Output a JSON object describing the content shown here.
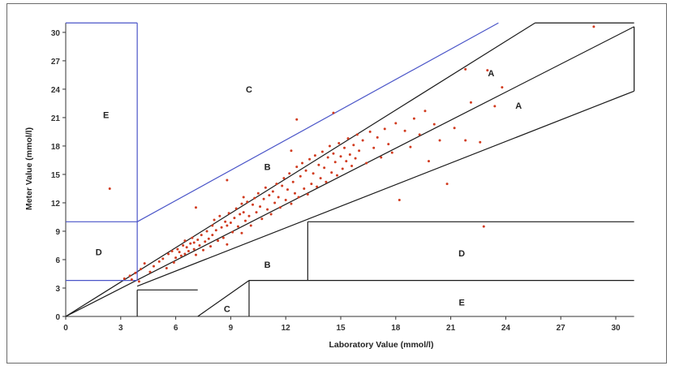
{
  "chart_data": {
    "type": "scatter",
    "xlabel": "Laboratory Value (mmol/l)",
    "ylabel": "Meter Value (mmol/l)",
    "xlim": [
      0,
      31
    ],
    "ylim": [
      0,
      31
    ],
    "xticks": [
      "0",
      "3",
      "6",
      "9",
      "12",
      "15",
      "18",
      "21",
      "24",
      "27",
      "30"
    ],
    "yticks": [
      "0",
      "3",
      "6",
      "9",
      "12",
      "15",
      "18",
      "21",
      "24",
      "27",
      "30"
    ],
    "zone_labels": [
      {
        "label": "A",
        "x": 23.2,
        "y": 25.7
      },
      {
        "label": "A",
        "x": 24.7,
        "y": 22.3
      },
      {
        "label": "B",
        "x": 11.0,
        "y": 15.8
      },
      {
        "label": "B",
        "x": 11.0,
        "y": 5.5
      },
      {
        "label": "C",
        "x": 10.0,
        "y": 24.0
      },
      {
        "label": "C",
        "x": 8.8,
        "y": 0.8
      },
      {
        "label": "D",
        "x": 1.8,
        "y": 6.8
      },
      {
        "label": "D",
        "x": 21.6,
        "y": 6.7
      },
      {
        "label": "E",
        "x": 2.2,
        "y": 21.3
      },
      {
        "label": "E",
        "x": 21.6,
        "y": 1.5
      }
    ],
    "series": [
      {
        "color": "#d13b1f",
        "points": [
          [
            3.2,
            4.0
          ],
          [
            3.5,
            4.3
          ],
          [
            3.8,
            4.6
          ],
          [
            4.1,
            5.0
          ],
          [
            4.3,
            5.6
          ],
          [
            4.6,
            4.7
          ],
          [
            4.8,
            5.3
          ],
          [
            5.1,
            5.8
          ],
          [
            5.3,
            6.1
          ],
          [
            5.5,
            5.1
          ],
          [
            5.6,
            6.6
          ],
          [
            5.8,
            6.9
          ],
          [
            5.9,
            5.7
          ],
          [
            6.0,
            6.2
          ],
          [
            6.1,
            7.1
          ],
          [
            6.2,
            6.8
          ],
          [
            6.3,
            6.4
          ],
          [
            6.4,
            7.5
          ],
          [
            6.5,
            6.6
          ],
          [
            6.5,
            8.0
          ],
          [
            6.6,
            7.3
          ],
          [
            6.7,
            6.9
          ],
          [
            6.8,
            7.7
          ],
          [
            6.9,
            8.3
          ],
          [
            7.0,
            7.1
          ],
          [
            7.0,
            7.8
          ],
          [
            7.1,
            6.5
          ],
          [
            7.2,
            8.1
          ],
          [
            7.3,
            7.5
          ],
          [
            7.4,
            8.6
          ],
          [
            7.5,
            7.0
          ],
          [
            7.6,
            7.9
          ],
          [
            7.7,
            9.0
          ],
          [
            7.8,
            8.2
          ],
          [
            7.9,
            7.4
          ],
          [
            8.0,
            9.6
          ],
          [
            8.0,
            8.6
          ],
          [
            8.1,
            10.2
          ],
          [
            8.2,
            9.1
          ],
          [
            8.3,
            8.0
          ],
          [
            8.4,
            10.6
          ],
          [
            8.5,
            9.4
          ],
          [
            8.6,
            8.3
          ],
          [
            8.7,
            10.0
          ],
          [
            8.8,
            9.6
          ],
          [
            8.8,
            7.6
          ],
          [
            8.9,
            10.9
          ],
          [
            9.0,
            9.9
          ],
          [
            9.1,
            8.9
          ],
          [
            9.2,
            10.4
          ],
          [
            9.3,
            11.4
          ],
          [
            9.4,
            9.5
          ],
          [
            9.5,
            10.8
          ],
          [
            9.6,
            8.8
          ],
          [
            9.7,
            11.0
          ],
          [
            9.8,
            10.1
          ],
          [
            9.9,
            12.1
          ],
          [
            10.0,
            10.6
          ],
          [
            10.1,
            9.6
          ],
          [
            10.2,
            11.8
          ],
          [
            10.3,
            12.5
          ],
          [
            10.4,
            11.0
          ],
          [
            10.5,
            13.0
          ],
          [
            10.6,
            11.6
          ],
          [
            10.7,
            10.3
          ],
          [
            10.8,
            12.4
          ],
          [
            10.9,
            13.6
          ],
          [
            11.0,
            11.3
          ],
          [
            11.1,
            12.8
          ],
          [
            11.2,
            10.8
          ],
          [
            11.3,
            13.2
          ],
          [
            11.4,
            12.0
          ],
          [
            11.5,
            14.0
          ],
          [
            11.6,
            12.6
          ],
          [
            11.7,
            11.5
          ],
          [
            11.8,
            13.8
          ],
          [
            11.9,
            14.6
          ],
          [
            12.0,
            12.3
          ],
          [
            12.1,
            13.4
          ],
          [
            12.2,
            15.1
          ],
          [
            12.3,
            11.9
          ],
          [
            12.4,
            14.2
          ],
          [
            12.5,
            13.0
          ],
          [
            12.6,
            15.8
          ],
          [
            12.7,
            12.6
          ],
          [
            12.8,
            14.8
          ],
          [
            12.9,
            16.2
          ],
          [
            13.0,
            13.5
          ],
          [
            13.1,
            15.4
          ],
          [
            13.2,
            12.9
          ],
          [
            13.3,
            16.6
          ],
          [
            13.4,
            14.0
          ],
          [
            13.5,
            15.1
          ],
          [
            13.6,
            17.0
          ],
          [
            13.7,
            13.7
          ],
          [
            13.8,
            16.0
          ],
          [
            13.9,
            14.6
          ],
          [
            14.0,
            17.4
          ],
          [
            14.1,
            15.7
          ],
          [
            14.2,
            14.2
          ],
          [
            14.3,
            16.8
          ],
          [
            14.4,
            18.0
          ],
          [
            14.5,
            15.2
          ],
          [
            14.6,
            17.2
          ],
          [
            14.7,
            16.3
          ],
          [
            14.8,
            14.9
          ],
          [
            14.9,
            18.3
          ],
          [
            15.0,
            16.9
          ],
          [
            15.1,
            15.6
          ],
          [
            15.2,
            17.8
          ],
          [
            15.3,
            16.4
          ],
          [
            15.4,
            18.8
          ],
          [
            15.5,
            17.1
          ],
          [
            15.6,
            15.9
          ],
          [
            15.7,
            18.1
          ],
          [
            15.8,
            16.7
          ],
          [
            15.9,
            19.2
          ],
          [
            16.0,
            17.5
          ],
          [
            16.2,
            18.6
          ],
          [
            16.4,
            16.2
          ],
          [
            16.6,
            19.5
          ],
          [
            16.8,
            17.8
          ],
          [
            17.0,
            18.9
          ],
          [
            17.2,
            16.8
          ],
          [
            17.4,
            19.8
          ],
          [
            17.6,
            18.2
          ],
          [
            17.8,
            17.3
          ],
          [
            18.0,
            20.4
          ],
          [
            18.2,
            12.3
          ],
          [
            18.5,
            19.6
          ],
          [
            18.8,
            17.9
          ],
          [
            19.0,
            20.9
          ],
          [
            19.3,
            19.2
          ],
          [
            19.6,
            21.7
          ],
          [
            19.8,
            16.4
          ],
          [
            20.1,
            20.3
          ],
          [
            20.4,
            18.6
          ],
          [
            20.8,
            14.0
          ],
          [
            21.2,
            19.9
          ],
          [
            21.8,
            18.6
          ],
          [
            22.1,
            22.6
          ],
          [
            22.6,
            18.4
          ],
          [
            23.0,
            26.0
          ],
          [
            23.4,
            22.2
          ],
          [
            23.8,
            24.2
          ],
          [
            2.4,
            13.5
          ],
          [
            9.6,
            11.9
          ],
          [
            12.3,
            17.5
          ],
          [
            9.7,
            12.6
          ],
          [
            12.6,
            20.8
          ],
          [
            8.8,
            14.4
          ],
          [
            3.6,
            3.9
          ],
          [
            14.6,
            21.5
          ],
          [
            4.0,
            3.7
          ],
          [
            22.8,
            9.5
          ],
          [
            28.8,
            30.6
          ],
          [
            21.8,
            26.1
          ],
          [
            7.1,
            11.5
          ]
        ]
      }
    ]
  }
}
